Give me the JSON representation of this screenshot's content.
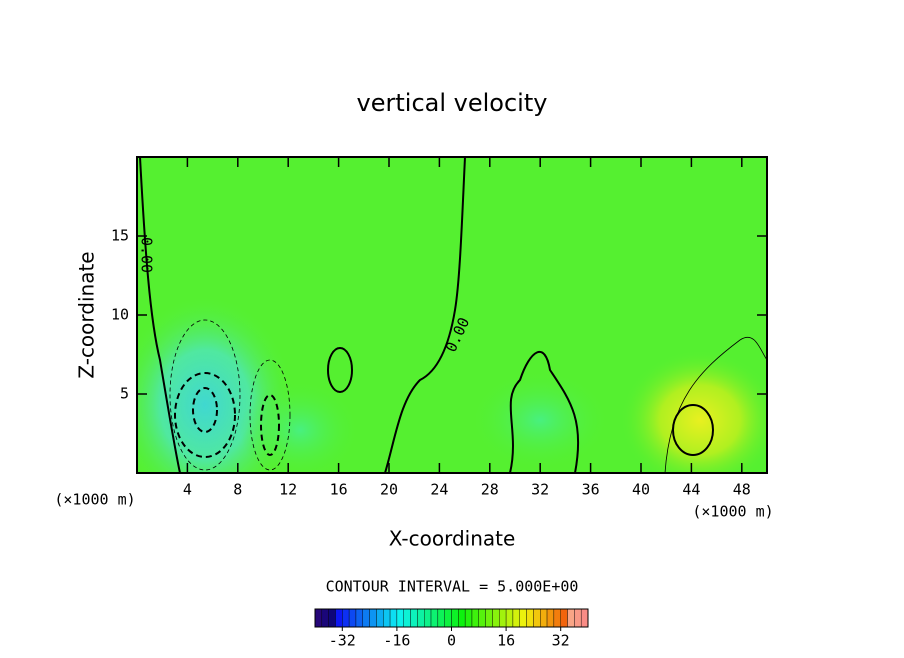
{
  "chart_data": {
    "type": "contour",
    "title": "vertical velocity",
    "x_label": "X-coordinate",
    "y_label": "Z-coordinate",
    "x_unit": "(×1000 m)",
    "y_unit": "(×1000 m)",
    "contour_interval": "CONTOUR INTERVAL = 5.000E+00",
    "contour_label": "0.00",
    "xlim": [
      0,
      50
    ],
    "xticks": [
      4,
      8,
      12,
      16,
      20,
      24,
      28,
      32,
      36,
      40,
      44,
      48
    ],
    "ylim": [
      0,
      20
    ],
    "yticks": [
      5,
      10,
      15
    ],
    "colorbar": {
      "lim": [
        -40,
        40
      ],
      "ticks": [
        -32,
        -16,
        0,
        16,
        32
      ]
    }
  }
}
